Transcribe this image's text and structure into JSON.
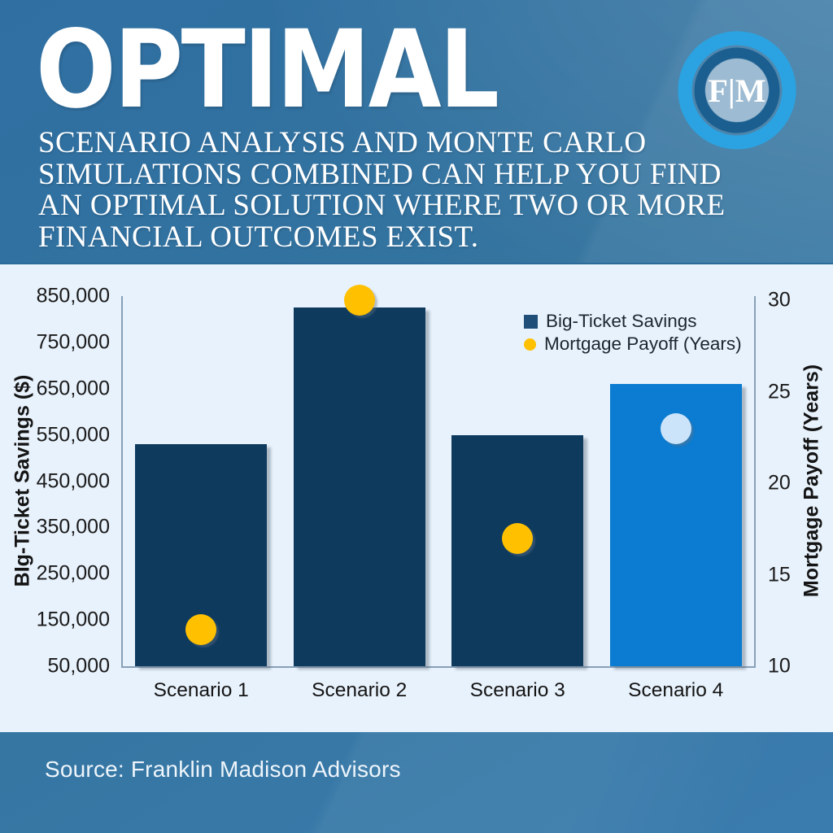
{
  "header": {
    "title": "OPTIMAL",
    "subtitle_lines": [
      "SCENARIO ANALYSIS AND MONTE CARLO",
      "SIMULATIONS COMBINED CAN HELP YOU FIND",
      "AN OPTIMAL SOLUTION WHERE TWO OR MORE",
      "FINANCIAL OUTCOMES EXIST."
    ],
    "logo": {
      "monogram": "F|M"
    }
  },
  "chart_data": {
    "type": "bar",
    "title": "",
    "categories": [
      "Scenario 1",
      "Scenario 2",
      "Scenario 3",
      "Scenario 4"
    ],
    "series": [
      {
        "name": "Big-Ticket Savings",
        "kind": "bar",
        "axis": "left",
        "values": [
          530000,
          825000,
          550000,
          660000
        ],
        "point_colors": [
          "#0E3A5E",
          "#0E3A5E",
          "#0E3A5E",
          "#0B7CD1"
        ]
      },
      {
        "name": "Mortgage Payoff (Years)",
        "kind": "scatter",
        "axis": "right",
        "values": [
          12,
          30,
          17,
          23
        ],
        "point_colors": [
          "#FFC000",
          "#FFC000",
          "#FFC000",
          "#CBE4F9"
        ]
      }
    ],
    "left_axis": {
      "title": "BIg-Ticket Savings ($)",
      "min": 50000,
      "max": 850000,
      "step": 100000,
      "tick_labels": [
        "850,000",
        "750,000",
        "650,000",
        "550,000",
        "450,000",
        "350,000",
        "250,000",
        "150,000",
        "50,000"
      ]
    },
    "right_axis": {
      "title": "Mortgage Payoff (Years)",
      "min": 10,
      "max": 30,
      "step": 5,
      "tick_labels": [
        "30",
        "25",
        "20",
        "15",
        "10"
      ]
    },
    "legend": {
      "position": "top-right",
      "items": [
        {
          "label": "Big-Ticket Savings",
          "marker": "square",
          "color": "#1F4E79"
        },
        {
          "label": "Mortgage Payoff (Years)",
          "marker": "circle",
          "color": "#FFC000"
        }
      ]
    },
    "grid": false
  },
  "footer": {
    "source": "Source: Franklin Madison Advisors"
  },
  "colors": {
    "background_blue": "#3578AB",
    "panel_background": "#E8F2FC",
    "bar_navy": "#0E3A5E",
    "bar_light_blue": "#0B7CD1",
    "dot_yellow": "#FFC000",
    "dot_light_blue": "#CBE4F9",
    "axis_line": "#87A0B8",
    "text_dark": "#1A1A1A",
    "text_white": "#FFFFFF",
    "logo_ribbon_light": "#2BA3E2",
    "logo_ribbon_dark": "#1B5E90",
    "logo_disc": "#9DBBD2"
  }
}
